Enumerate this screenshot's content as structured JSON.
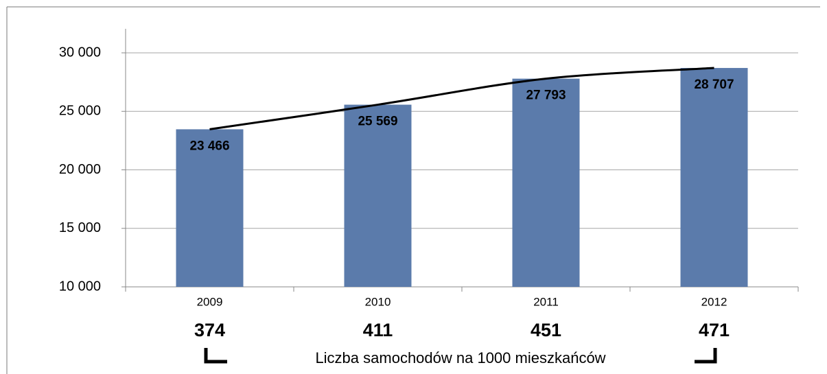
{
  "chart_data": {
    "type": "bar",
    "categories": [
      "2009",
      "2010",
      "2011",
      "2012"
    ],
    "values": [
      23466,
      25569,
      27793,
      28707
    ],
    "value_labels": [
      "23 466",
      "25 569",
      "27 793",
      "28 707"
    ],
    "color": "#5b7bab",
    "trendline": true,
    "ylim": [
      10000,
      30000
    ],
    "yticks": [
      {
        "value": 10000,
        "label": "10 000"
      },
      {
        "value": 15000,
        "label": "15 000"
      },
      {
        "value": 20000,
        "label": "20 000"
      },
      {
        "value": 25000,
        "label": "25 000"
      },
      {
        "value": 30000,
        "label": "30 000"
      }
    ],
    "grid": true,
    "secondary_row": {
      "label": "Liczba samochodów na 1000 mieszkańców",
      "values": [
        374,
        411,
        451,
        471
      ]
    }
  }
}
